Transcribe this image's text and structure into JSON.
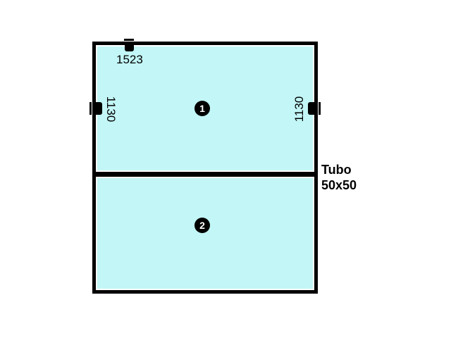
{
  "panes": [
    {
      "number": "1"
    },
    {
      "number": "2"
    }
  ],
  "dimensions": {
    "top": "1523",
    "left": "1130",
    "right": "1130"
  },
  "profile_note": {
    "line1": "Tubo",
    "line2": "50x50"
  },
  "colors": {
    "glass": "#c3f6f6",
    "frame": "#000000",
    "badge": "#000000",
    "background": "#ffffff"
  },
  "icons": {
    "hinge": "hinge-icon"
  }
}
